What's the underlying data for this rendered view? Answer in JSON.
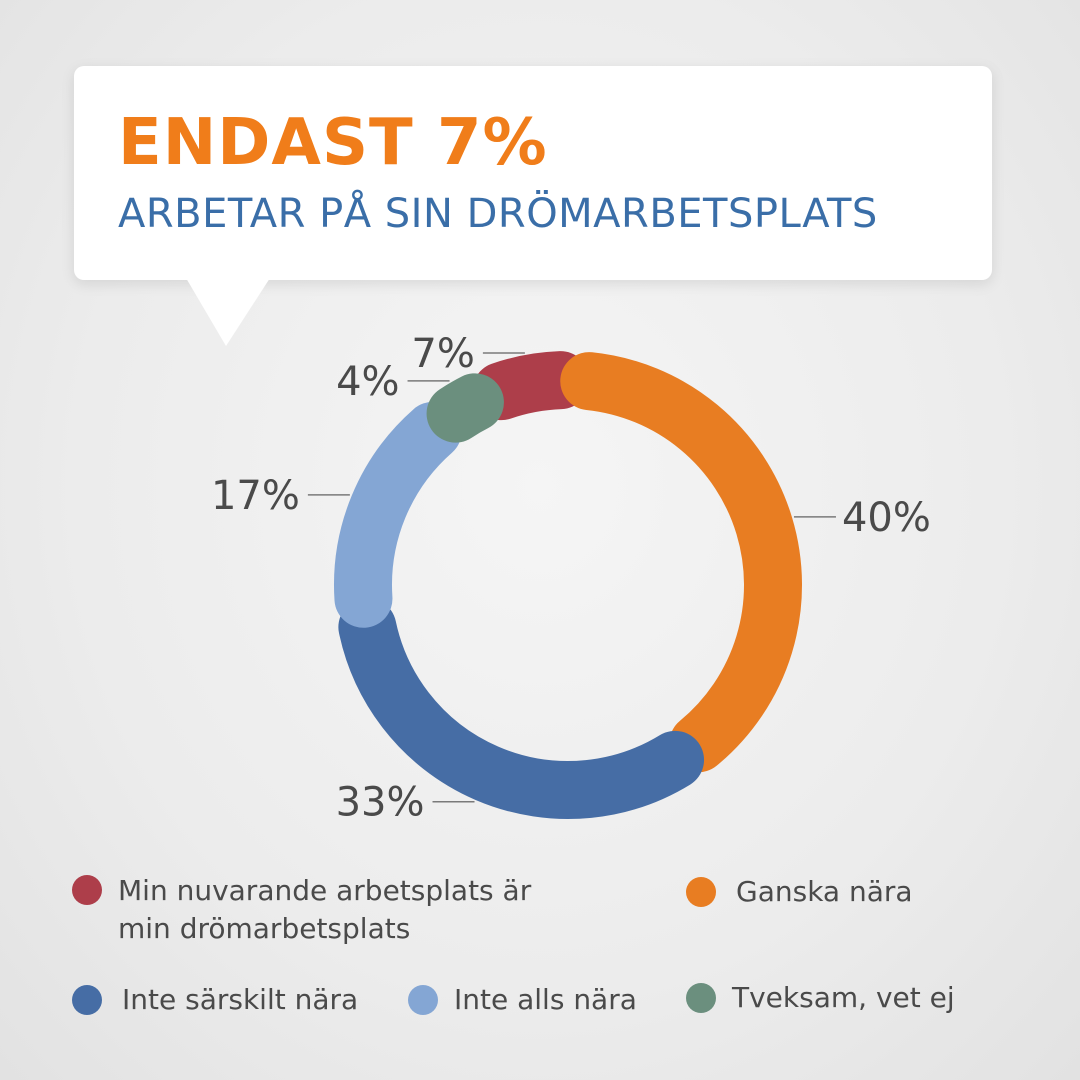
{
  "header": {
    "headline": "ENDAST 7%",
    "subline": "ARBETAR PÅ SIN DRÖMARBETSPLATS"
  },
  "chart_data": {
    "type": "pie",
    "title": "",
    "slices": [
      {
        "label": "Min nuvarande arbetsplats är\nmin drömarbetsplats",
        "value": 7,
        "value_label": "7%",
        "color": "#ad3e4a"
      },
      {
        "label": "Ganska nära",
        "value": 40,
        "value_label": "40%",
        "color": "#e87d22"
      },
      {
        "label": "Inte särskilt nära",
        "value": 33,
        "value_label": "33%",
        "color": "#466da5"
      },
      {
        "label": "Inte alls nära",
        "value": 17,
        "value_label": "17%",
        "color": "#84a6d4"
      },
      {
        "label": "Tveksam, vet ej",
        "value": 4,
        "value_label": "4%",
        "color": "#6b8f7e"
      }
    ],
    "legend_placement": "bottom"
  }
}
